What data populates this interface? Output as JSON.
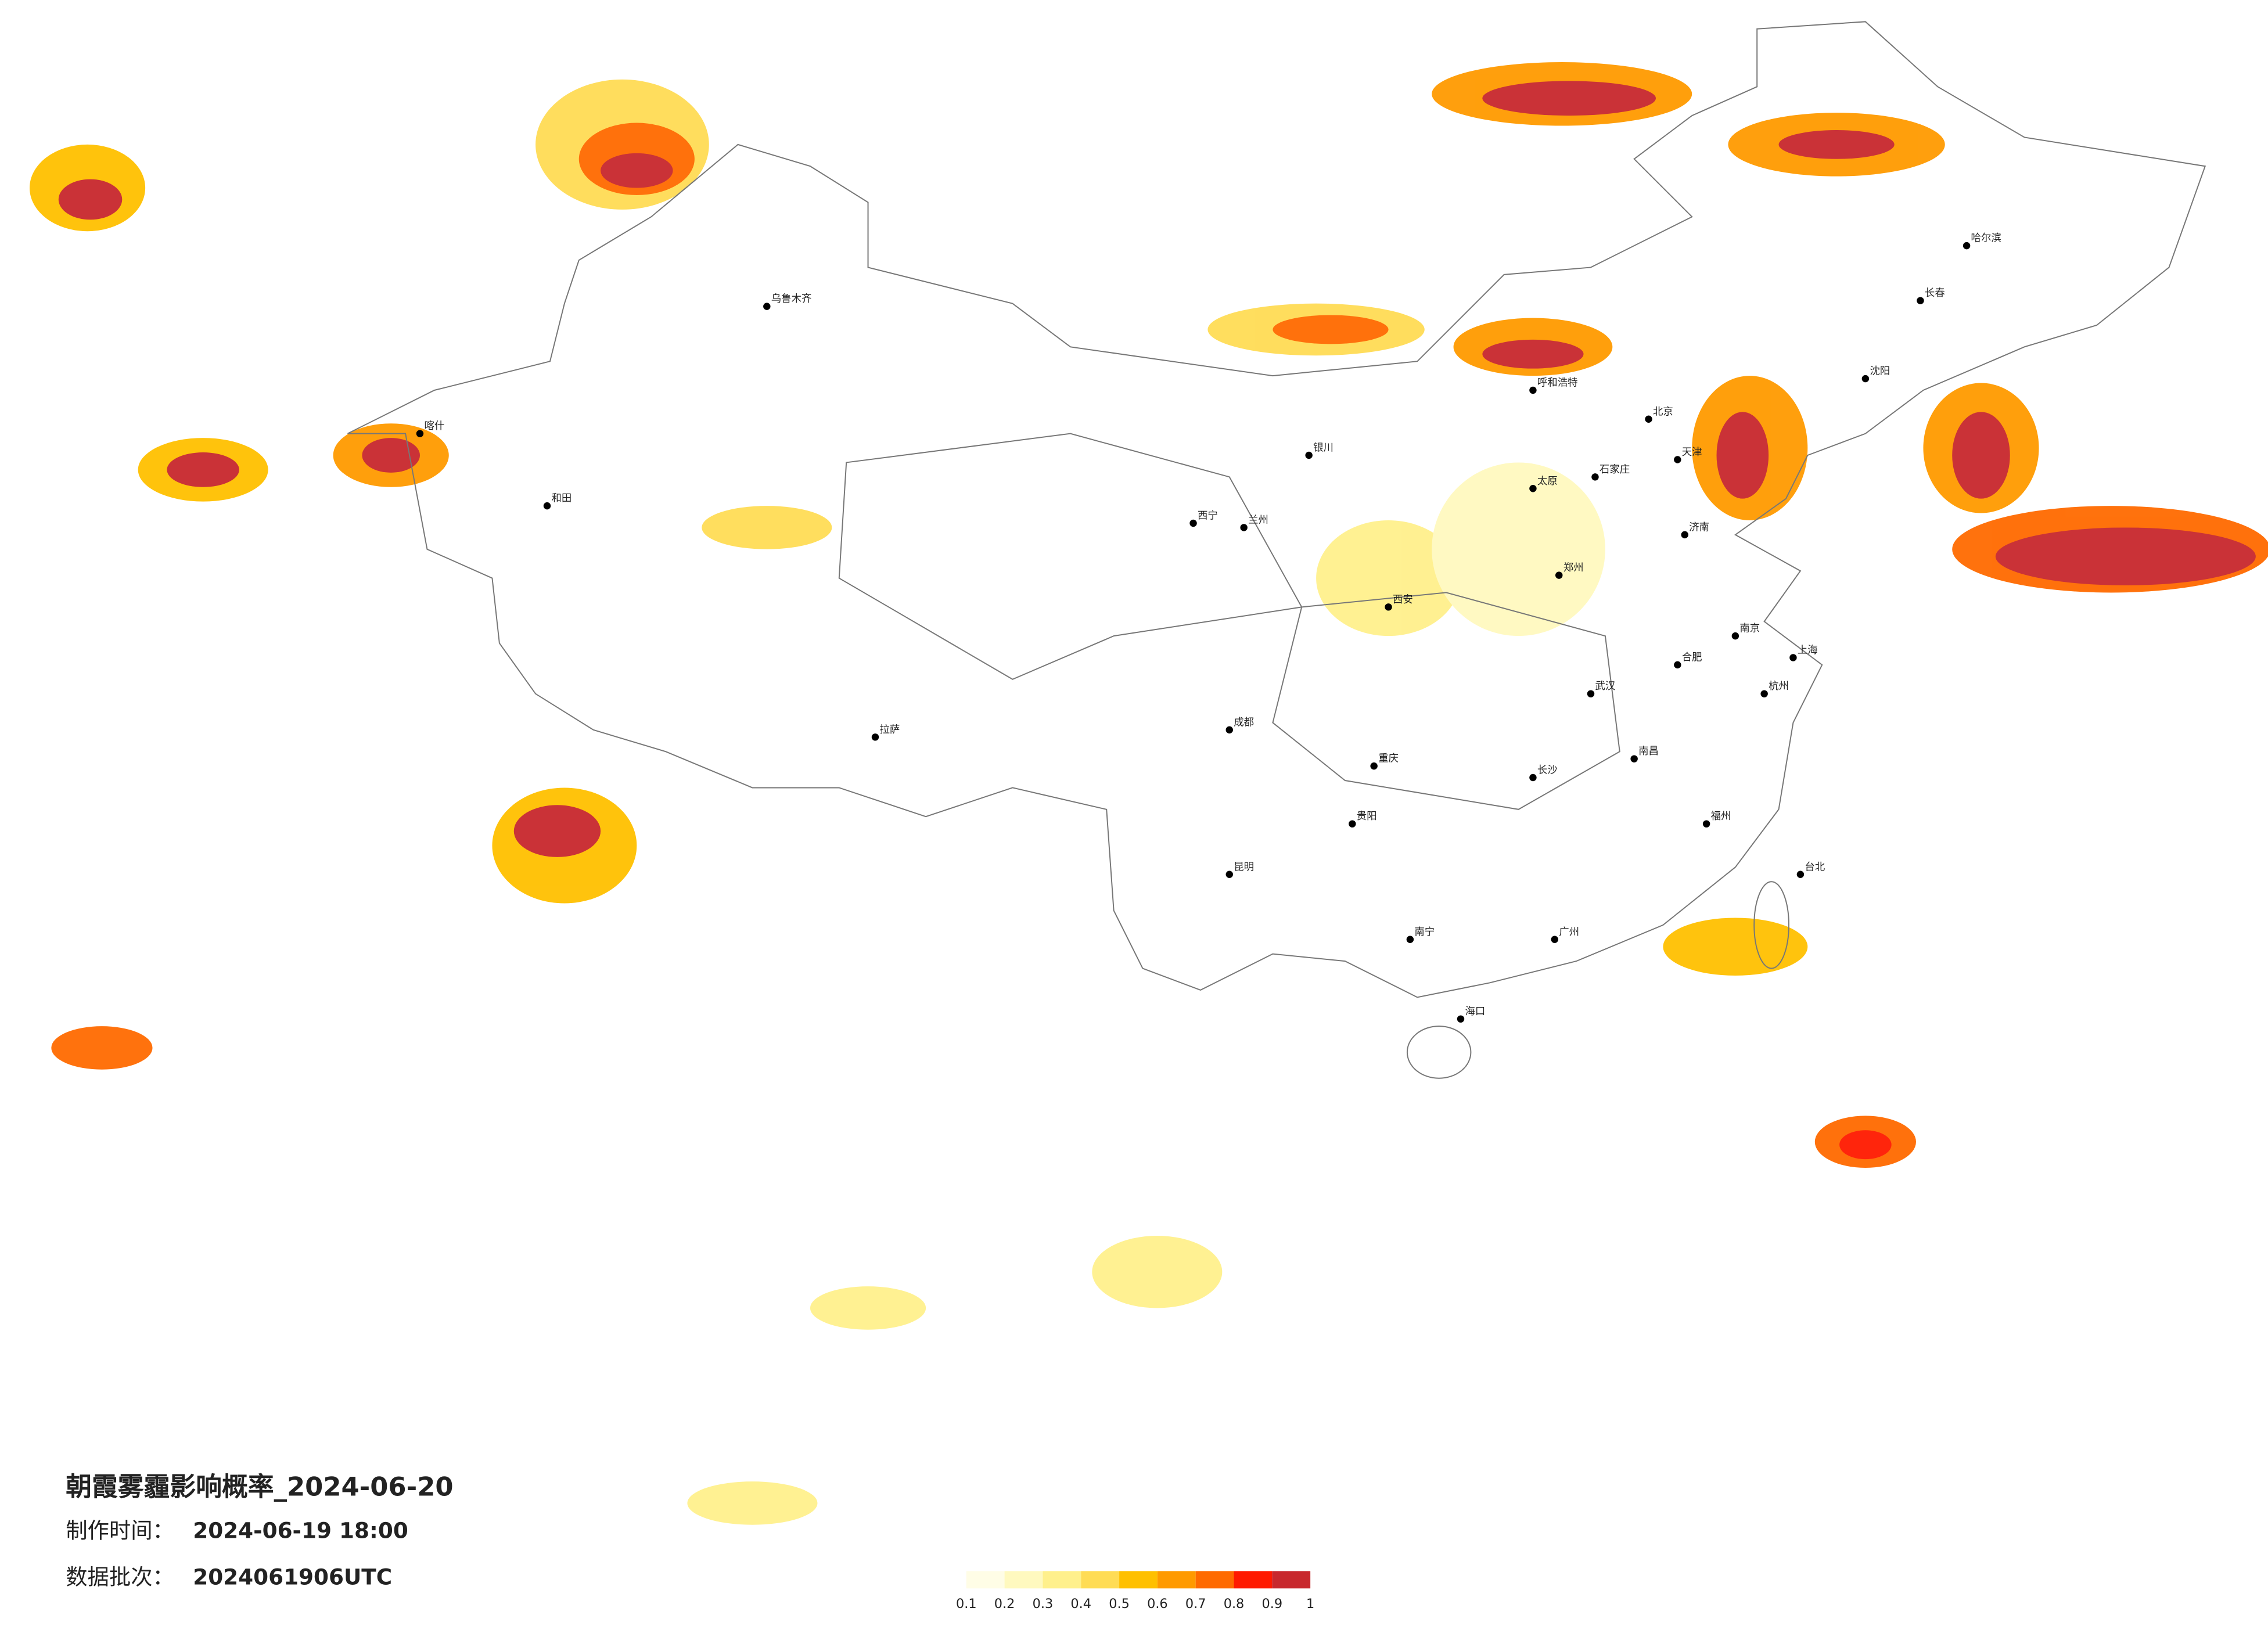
{
  "header": {
    "title": "朝霞雾霾影响概率_2024-06-20",
    "info": [
      {
        "label": "制作时间：",
        "value": "2024-06-19 18:00"
      },
      {
        "label": "数据批次：",
        "value": "2024061906UTC"
      }
    ]
  },
  "legend": {
    "colors": [
      "#fffde6",
      "#fff9bf",
      "#fff08c",
      "#ffdc55",
      "#ffc000",
      "#ff9a00",
      "#ff6a00",
      "#ff1a00",
      "#c8282d"
    ],
    "ticks": [
      0.1,
      0.2,
      0.3,
      0.4,
      0.5,
      0.6,
      0.7,
      0.8,
      0.9,
      1
    ]
  },
  "cities": [
    "哈尔滨",
    "长春",
    "沈阳",
    "北京",
    "天津",
    "石家庄",
    "太原",
    "呼和浩特",
    "济南",
    "郑州",
    "西安",
    "兰州",
    "西宁",
    "银川",
    "乌鲁木齐",
    "拉萨",
    "成都",
    "重庆",
    "贵阳",
    "昆明",
    "南宁",
    "广州",
    "海口",
    "福州",
    "南昌",
    "长沙",
    "武汉",
    "合肥",
    "南京",
    "上海",
    "杭州",
    "台北",
    "喀什",
    "和田"
  ]
}
